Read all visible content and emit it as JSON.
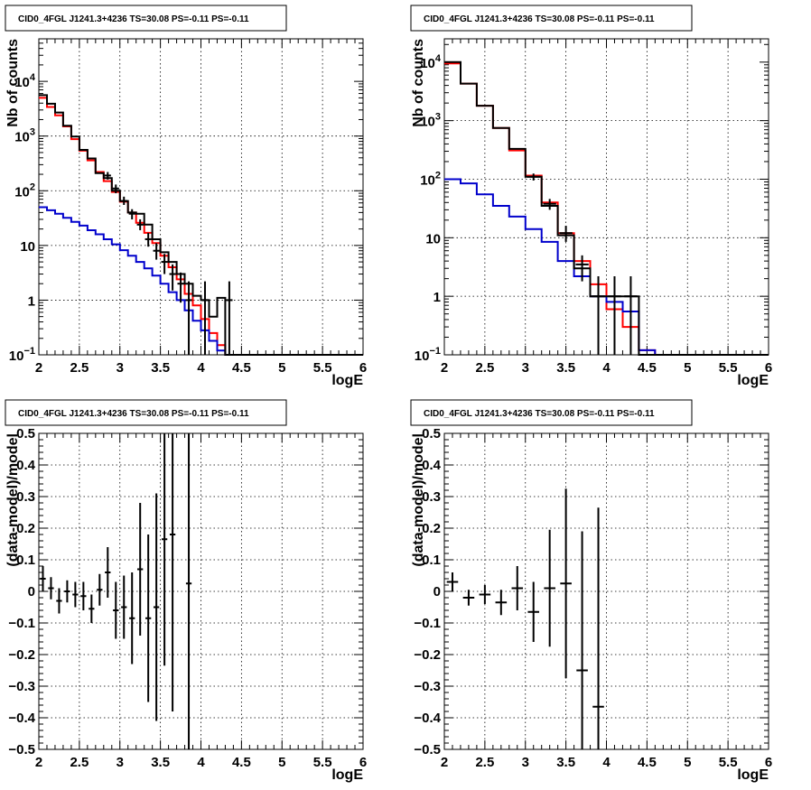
{
  "chart_data": [
    {
      "type": "step-histogram",
      "title": "CID0_4FGL J1241.3+4236 TS=30.08 PS=-0.11 PS=-0.11",
      "xlabel": "logE",
      "ylabel": "Nb of counts",
      "log_y": true,
      "xlim": [
        2,
        6
      ],
      "ylim": [
        0.1,
        60000
      ],
      "grid": true,
      "x_ticks": [
        "2",
        "2.5",
        "3",
        "3.5",
        "4",
        "4.5",
        "5",
        "5.5",
        "6"
      ],
      "y_ticks": [
        {
          "value": 0.1,
          "base": "10",
          "exp": "−1"
        },
        {
          "value": 1,
          "base": "1",
          "exp": ""
        },
        {
          "value": 10,
          "base": "10",
          "exp": ""
        },
        {
          "value": 100,
          "base": "10",
          "exp": "2"
        },
        {
          "value": 1000,
          "base": "10",
          "exp": "3"
        },
        {
          "value": 10000,
          "base": "10",
          "exp": "4"
        }
      ],
      "bin_edges": [
        2.0,
        2.1,
        2.2,
        2.3,
        2.4,
        2.5,
        2.6,
        2.7,
        2.8,
        2.9,
        3.0,
        3.1,
        3.2,
        3.3,
        3.4,
        3.5,
        3.6,
        3.7,
        3.8,
        3.9,
        4.0,
        4.1,
        4.2,
        4.3,
        4.4,
        4.5,
        4.6,
        4.7,
        4.8,
        4.9,
        5.0,
        5.1,
        5.2,
        5.3,
        5.4,
        5.5,
        5.6,
        5.7,
        5.8,
        5.9,
        6.0
      ],
      "series": [
        {
          "color": "#ff0000",
          "values": [
            5000,
            3400,
            2400,
            1500,
            880,
            540,
            360,
            220,
            150,
            95,
            63,
            40,
            26,
            17,
            11,
            6.5,
            4.0,
            2.4,
            1.3,
            0.8,
            0.45,
            0.25,
            0.15,
            0.1,
            0.1,
            0.1,
            0.1,
            0.1,
            0.1,
            0.1,
            0.1,
            0.1,
            0.1,
            0.1,
            0.1,
            0.1,
            0.1,
            0.1,
            0.1,
            0.1
          ]
        },
        {
          "color": "#0000cc",
          "values": [
            50,
            44,
            38,
            32,
            27,
            23,
            19,
            16,
            13,
            10.5,
            8.2,
            6.5,
            5,
            3.8,
            2.8,
            2.0,
            1.4,
            1.0,
            0.65,
            0.42,
            0.28,
            0.18,
            0.12,
            0.1,
            0.1,
            0.1,
            0.1,
            0.1,
            0.1,
            0.1,
            0.1,
            0.1,
            0.1,
            0.1,
            0.1,
            0.1,
            0.1,
            0.1,
            0.1,
            0.1
          ]
        },
        {
          "color": "#000000",
          "values": [
            5600,
            3900,
            2700,
            1550,
            980,
            560,
            390,
            210,
            170,
            100,
            65,
            40,
            38,
            24,
            13,
            7.5,
            5,
            3,
            2,
            1.2,
            1,
            0.5,
            1.1,
            0.1,
            0.1,
            0.1,
            0.1,
            0.1,
            0.1,
            0.1,
            0.1,
            0.1,
            0.1,
            0.1,
            0.1,
            0.1,
            0.1,
            0.1,
            0.1,
            0.1
          ]
        }
      ],
      "data_points": [
        {
          "x": 2.85,
          "y": 190,
          "lo": 160,
          "hi": 220
        },
        {
          "x": 2.95,
          "y": 110,
          "lo": 90,
          "hi": 130
        },
        {
          "x": 3.05,
          "y": 65,
          "lo": 55,
          "hi": 78
        },
        {
          "x": 3.15,
          "y": 38,
          "lo": 30,
          "hi": 46
        },
        {
          "x": 3.25,
          "y": 24,
          "lo": 19,
          "hi": 30
        },
        {
          "x": 3.35,
          "y": 13,
          "lo": 9.5,
          "hi": 17
        },
        {
          "x": 3.45,
          "y": 8,
          "lo": 5.5,
          "hi": 11
        },
        {
          "x": 3.55,
          "y": 5,
          "lo": 3,
          "hi": 7
        },
        {
          "x": 3.65,
          "y": 3,
          "lo": 1.5,
          "hi": 4.5
        },
        {
          "x": 3.75,
          "y": 2,
          "lo": 0.9,
          "hi": 3.2
        },
        {
          "x": 3.85,
          "y": 1,
          "lo": 0.1,
          "hi": 2.2
        },
        {
          "x": 4.05,
          "y": 1,
          "lo": 0.1,
          "hi": 2.2
        },
        {
          "x": 4.35,
          "y": 1,
          "lo": 0.1,
          "hi": 2.2
        }
      ]
    },
    {
      "type": "step-histogram",
      "title": "CID0_4FGL J1241.3+4236 TS=30.08 PS=-0.11 PS=-0.11",
      "xlabel": "logE",
      "ylabel": "Nb of counts",
      "log_y": true,
      "xlim": [
        2,
        6
      ],
      "ylim": [
        0.1,
        25000
      ],
      "grid": true,
      "x_ticks": [
        "2",
        "2.5",
        "3",
        "3.5",
        "4",
        "4.5",
        "5",
        "5.5",
        "6"
      ],
      "y_ticks": [
        {
          "value": 0.1,
          "base": "10",
          "exp": "−1"
        },
        {
          "value": 1,
          "base": "1",
          "exp": ""
        },
        {
          "value": 10,
          "base": "10",
          "exp": ""
        },
        {
          "value": 100,
          "base": "10",
          "exp": "2"
        },
        {
          "value": 1000,
          "base": "10",
          "exp": "3"
        },
        {
          "value": 10000,
          "base": "10",
          "exp": "4"
        }
      ],
      "bin_edges": [
        2.0,
        2.2,
        2.4,
        2.6,
        2.8,
        3.0,
        3.2,
        3.4,
        3.6,
        3.8,
        4.0,
        4.2,
        4.4,
        4.6,
        4.8,
        5.0,
        5.2,
        5.4,
        5.6,
        5.8,
        6.0
      ],
      "series": [
        {
          "color": "#ff0000",
          "values": [
            9500,
            4300,
            1800,
            750,
            310,
            115,
            40,
            12,
            4,
            1.6,
            0.6,
            0.3,
            0.12,
            0.1,
            0.1,
            0.1,
            0.1,
            0.1,
            0.1,
            0.1
          ]
        },
        {
          "color": "#0000cc",
          "values": [
            100,
            85,
            55,
            35,
            23,
            14,
            8.5,
            4,
            2.2,
            1.0,
            0.8,
            0.55,
            0.12,
            0.1,
            0.1,
            0.1,
            0.1,
            0.1,
            0.1,
            0.1
          ]
        },
        {
          "color": "#000000",
          "values": [
            10000,
            4300,
            1800,
            750,
            330,
            110,
            35,
            11,
            3,
            1,
            1,
            1,
            0.1,
            0.1,
            0.1,
            0.1,
            0.1,
            0.1,
            0.1,
            0.1
          ]
        }
      ],
      "data_points": [
        {
          "x": 3.1,
          "y": 110,
          "lo": 95,
          "hi": 125
        },
        {
          "x": 3.3,
          "y": 38,
          "lo": 30,
          "hi": 46
        },
        {
          "x": 3.5,
          "y": 12,
          "lo": 8.5,
          "hi": 16
        },
        {
          "x": 3.7,
          "y": 3.5,
          "lo": 1.8,
          "hi": 5
        },
        {
          "x": 3.9,
          "y": 1,
          "lo": 0.1,
          "hi": 2.2
        },
        {
          "x": 4.1,
          "y": 1,
          "lo": 0.1,
          "hi": 2.2
        },
        {
          "x": 4.3,
          "y": 1,
          "lo": 0.1,
          "hi": 2.2
        }
      ]
    },
    {
      "type": "errorbar",
      "title": "CID0_4FGL J1241.3+4236 TS=30.08 PS=-0.11 PS=-0.11",
      "xlabel": "logE",
      "ylabel": "(data-model)/model",
      "log_y": false,
      "xlim": [
        2,
        6
      ],
      "ylim": [
        -0.5,
        0.5
      ],
      "grid": true,
      "x_ticks": [
        "2",
        "2.5",
        "3",
        "3.5",
        "4",
        "4.5",
        "5",
        "5.5",
        "6"
      ],
      "y_ticks": [
        "−0.5",
        "−0.4",
        "−0.3",
        "−0.2",
        "−0.1",
        "0",
        "0.1",
        "0.2",
        "0.3",
        "0.4",
        "0.5"
      ],
      "points": [
        {
          "x": 2.05,
          "y": 0.04,
          "err": 0.04,
          "xerr": 0.05
        },
        {
          "x": 2.15,
          "y": 0.01,
          "err": 0.035,
          "xerr": 0.05
        },
        {
          "x": 2.25,
          "y": -0.03,
          "err": 0.04,
          "xerr": 0.05
        },
        {
          "x": 2.35,
          "y": 0.0,
          "err": 0.035,
          "xerr": 0.05
        },
        {
          "x": 2.45,
          "y": -0.01,
          "err": 0.04,
          "xerr": 0.05
        },
        {
          "x": 2.55,
          "y": -0.015,
          "err": 0.045,
          "xerr": 0.05
        },
        {
          "x": 2.65,
          "y": -0.055,
          "err": 0.045,
          "xerr": 0.05
        },
        {
          "x": 2.75,
          "y": 0.005,
          "err": 0.05,
          "xerr": 0.05
        },
        {
          "x": 2.85,
          "y": 0.06,
          "err": 0.08,
          "xerr": 0.05
        },
        {
          "x": 2.95,
          "y": -0.06,
          "err": 0.09,
          "xerr": 0.05
        },
        {
          "x": 3.05,
          "y": -0.05,
          "err": 0.1,
          "xerr": 0.05
        },
        {
          "x": 3.15,
          "y": -0.085,
          "err": 0.145,
          "xerr": 0.05
        },
        {
          "x": 3.25,
          "y": 0.07,
          "err": 0.21,
          "xerr": 0.05
        },
        {
          "x": 3.35,
          "y": -0.085,
          "err": 0.265,
          "xerr": 0.05
        },
        {
          "x": 3.45,
          "y": -0.05,
          "err": 0.36,
          "xerr": 0.05
        },
        {
          "x": 3.55,
          "y": 0.165,
          "err": 0.4,
          "xerr": 0.05
        },
        {
          "x": 3.65,
          "y": 0.18,
          "err": 0.56,
          "xerr": 0.05
        },
        {
          "x": 3.85,
          "y": 0.025,
          "err": 0.8,
          "xerr": 0.05
        }
      ]
    },
    {
      "type": "errorbar",
      "title": "CID0_4FGL J1241.3+4236 TS=30.08 PS=-0.11 PS=-0.11",
      "xlabel": "logE",
      "ylabel": "(data-model)/model",
      "log_y": false,
      "xlim": [
        2,
        6
      ],
      "ylim": [
        -0.5,
        0.5
      ],
      "grid": true,
      "x_ticks": [
        "2",
        "2.5",
        "3",
        "3.5",
        "4",
        "4.5",
        "5",
        "5.5",
        "6"
      ],
      "y_ticks": [
        "−0.5",
        "−0.4",
        "−0.3",
        "−0.2",
        "−0.1",
        "0",
        "0.1",
        "0.2",
        "0.3",
        "0.4",
        "0.5"
      ],
      "points": [
        {
          "x": 2.1,
          "y": 0.03,
          "err": 0.03,
          "xerr": 0.1
        },
        {
          "x": 2.3,
          "y": -0.02,
          "err": 0.025,
          "xerr": 0.1
        },
        {
          "x": 2.5,
          "y": -0.01,
          "err": 0.03,
          "xerr": 0.1
        },
        {
          "x": 2.7,
          "y": -0.035,
          "err": 0.04,
          "xerr": 0.1
        },
        {
          "x": 2.9,
          "y": 0.01,
          "err": 0.07,
          "xerr": 0.1
        },
        {
          "x": 3.1,
          "y": -0.065,
          "err": 0.095,
          "xerr": 0.1
        },
        {
          "x": 3.3,
          "y": 0.01,
          "err": 0.185,
          "xerr": 0.1
        },
        {
          "x": 3.5,
          "y": 0.025,
          "err": 0.3,
          "xerr": 0.1
        },
        {
          "x": 3.7,
          "y": -0.25,
          "err": 0.44,
          "xerr": 0.1
        },
        {
          "x": 3.9,
          "y": -0.365,
          "err": 0.63,
          "xerr": 0.1
        }
      ]
    }
  ]
}
